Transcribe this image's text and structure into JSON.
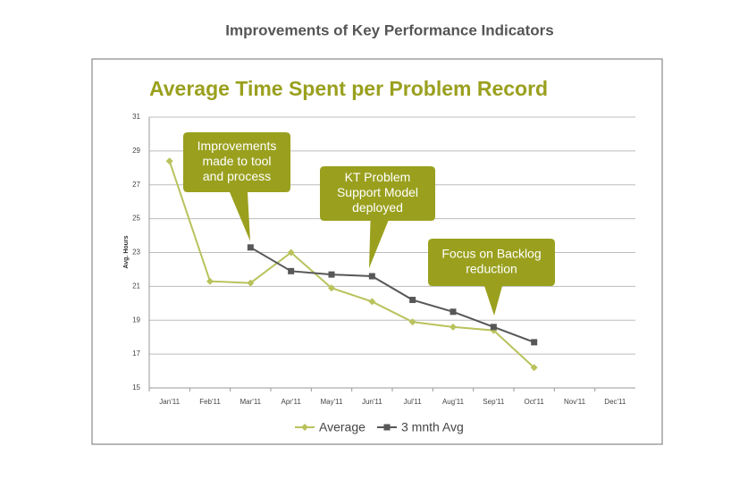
{
  "page_title": "Improvements of Key Performance Indicators",
  "chart_data": {
    "type": "line",
    "title": "Average Time Spent per Problem Record",
    "y_label": "Avg. Hours",
    "categories": [
      "Jan'11",
      "Feb'11",
      "Mar'11",
      "Apr'11",
      "May'11",
      "Jun'11",
      "Jul'11",
      "Aug'11",
      "Sep'11",
      "Oct'11",
      "Nov'11",
      "Dec'11"
    ],
    "series": [
      {
        "name": "Average",
        "color": "#b9c25c",
        "marker": "diamond",
        "values": [
          28.4,
          21.3,
          21.2,
          23.0,
          20.9,
          20.1,
          18.9,
          18.6,
          18.4,
          16.2,
          null,
          null
        ]
      },
      {
        "name": "3 mnth Avg",
        "color": "#575757",
        "marker": "square",
        "values": [
          null,
          null,
          23.3,
          21.9,
          21.7,
          21.6,
          20.2,
          19.5,
          18.6,
          17.7,
          null,
          null
        ]
      }
    ],
    "ylim": [
      15,
      31
    ],
    "yticks": [
      15,
      17,
      19,
      21,
      23,
      25,
      27,
      29,
      31
    ],
    "grid": true,
    "legend": "bottom",
    "annotations": [
      {
        "lines": [
          "Improvements",
          "made to tool",
          "and process"
        ],
        "color": "#9aa01e"
      },
      {
        "lines": [
          "KT Problem",
          "Support Model",
          "deployed"
        ],
        "color": "#9aa01e"
      },
      {
        "lines": [
          "Focus on Backlog",
          "reduction"
        ],
        "color": "#9aa01e"
      }
    ]
  }
}
